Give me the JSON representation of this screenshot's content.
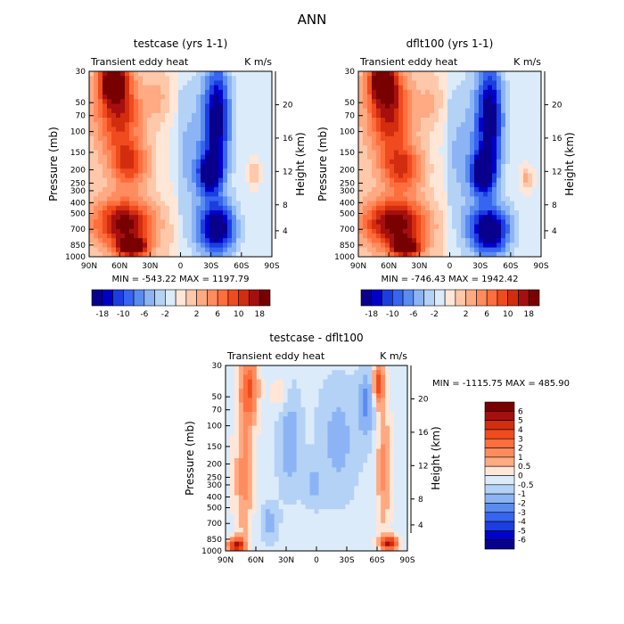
{
  "figure_title": "ANN",
  "chart_data": [
    {
      "type": "heatmap",
      "title": "testcase (yrs 1-1)",
      "subtitle_left": "Transient eddy heat",
      "subtitle_right": "K m/s",
      "ylabel": "Pressure (mb)",
      "ylabel_right": "Height (km)",
      "x_ticks": [
        "90N",
        "60N",
        "30N",
        "0",
        "30S",
        "60S",
        "90S"
      ],
      "y_ticks": [
        "30",
        "50",
        "70",
        "100",
        "150",
        "200",
        "250",
        "300",
        "400",
        "500",
        "700",
        "850",
        "1000"
      ],
      "y_ticks_right": [
        "20",
        "16",
        "12",
        "8",
        "4"
      ],
      "min_max_text": "MIN = -543.22   MAX = 1197.79",
      "colorbar": {
        "orientation": "horizontal",
        "labels": [
          "-18",
          "-10",
          "-6",
          "-2",
          "2",
          "6",
          "10",
          "18"
        ],
        "colors": [
          "#08008c",
          "#0000c8",
          "#1c3de0",
          "#3764f0",
          "#5a8cf0",
          "#8cb4f5",
          "#b4d2f5",
          "#dcebfa",
          "#ffe6d7",
          "#ffc8aa",
          "#ffaa82",
          "#ff8c5f",
          "#ff6e3c",
          "#f04b1e",
          "#d22d0f",
          "#a50f0f",
          "#780000"
        ]
      }
    },
    {
      "type": "heatmap",
      "title": "dflt100 (yrs 1-1)",
      "subtitle_left": "Transient eddy heat",
      "subtitle_right": "K m/s",
      "ylabel": "Pressure (mb)",
      "ylabel_right": "Height (km)",
      "x_ticks": [
        "90N",
        "60N",
        "30N",
        "0",
        "30S",
        "60S",
        "90S"
      ],
      "y_ticks": [
        "30",
        "50",
        "70",
        "100",
        "150",
        "200",
        "250",
        "300",
        "400",
        "500",
        "700",
        "850",
        "1000"
      ],
      "y_ticks_right": [
        "20",
        "16",
        "12",
        "8",
        "4"
      ],
      "min_max_text": "MIN = -746.43   MAX = 1942.42",
      "colorbar": {
        "orientation": "horizontal",
        "labels": [
          "-18",
          "-10",
          "-6",
          "-2",
          "2",
          "6",
          "10",
          "18"
        ],
        "colors": [
          "#08008c",
          "#0000c8",
          "#1c3de0",
          "#3764f0",
          "#5a8cf0",
          "#8cb4f5",
          "#b4d2f5",
          "#dcebfa",
          "#ffe6d7",
          "#ffc8aa",
          "#ffaa82",
          "#ff8c5f",
          "#ff6e3c",
          "#f04b1e",
          "#d22d0f",
          "#a50f0f",
          "#780000"
        ]
      }
    },
    {
      "type": "heatmap",
      "title": "testcase - dflt100",
      "subtitle_left": "Transient eddy heat",
      "subtitle_right": "K m/s",
      "ylabel": "Pressure (mb)",
      "ylabel_right": "Height (km)",
      "x_ticks": [
        "90N",
        "60N",
        "30N",
        "0",
        "30S",
        "60S",
        "90S"
      ],
      "y_ticks": [
        "30",
        "50",
        "70",
        "100",
        "150",
        "200",
        "250",
        "300",
        "400",
        "500",
        "700",
        "850",
        "1000"
      ],
      "y_ticks_right": [
        "20",
        "16",
        "12",
        "8",
        "4"
      ],
      "min_max_text": "MIN = -1115.75   MAX = 485.90",
      "colorbar": {
        "orientation": "vertical",
        "labels": [
          "6",
          "5",
          "4",
          "3",
          "2",
          "1",
          "0.5",
          "0",
          "-0.5",
          "-1",
          "-2",
          "-3",
          "-4",
          "-5",
          "-6"
        ],
        "colors": [
          "#780000",
          "#a50f0f",
          "#d22d0f",
          "#f04b1e",
          "#ff6e3c",
          "#ff8c5f",
          "#ffaa82",
          "#ffe6d7",
          "#dcebfa",
          "#b4d2f5",
          "#8cb4f5",
          "#5a8cf0",
          "#3764f0",
          "#1c3de0",
          "#0000c8",
          "#08008c"
        ]
      }
    }
  ]
}
